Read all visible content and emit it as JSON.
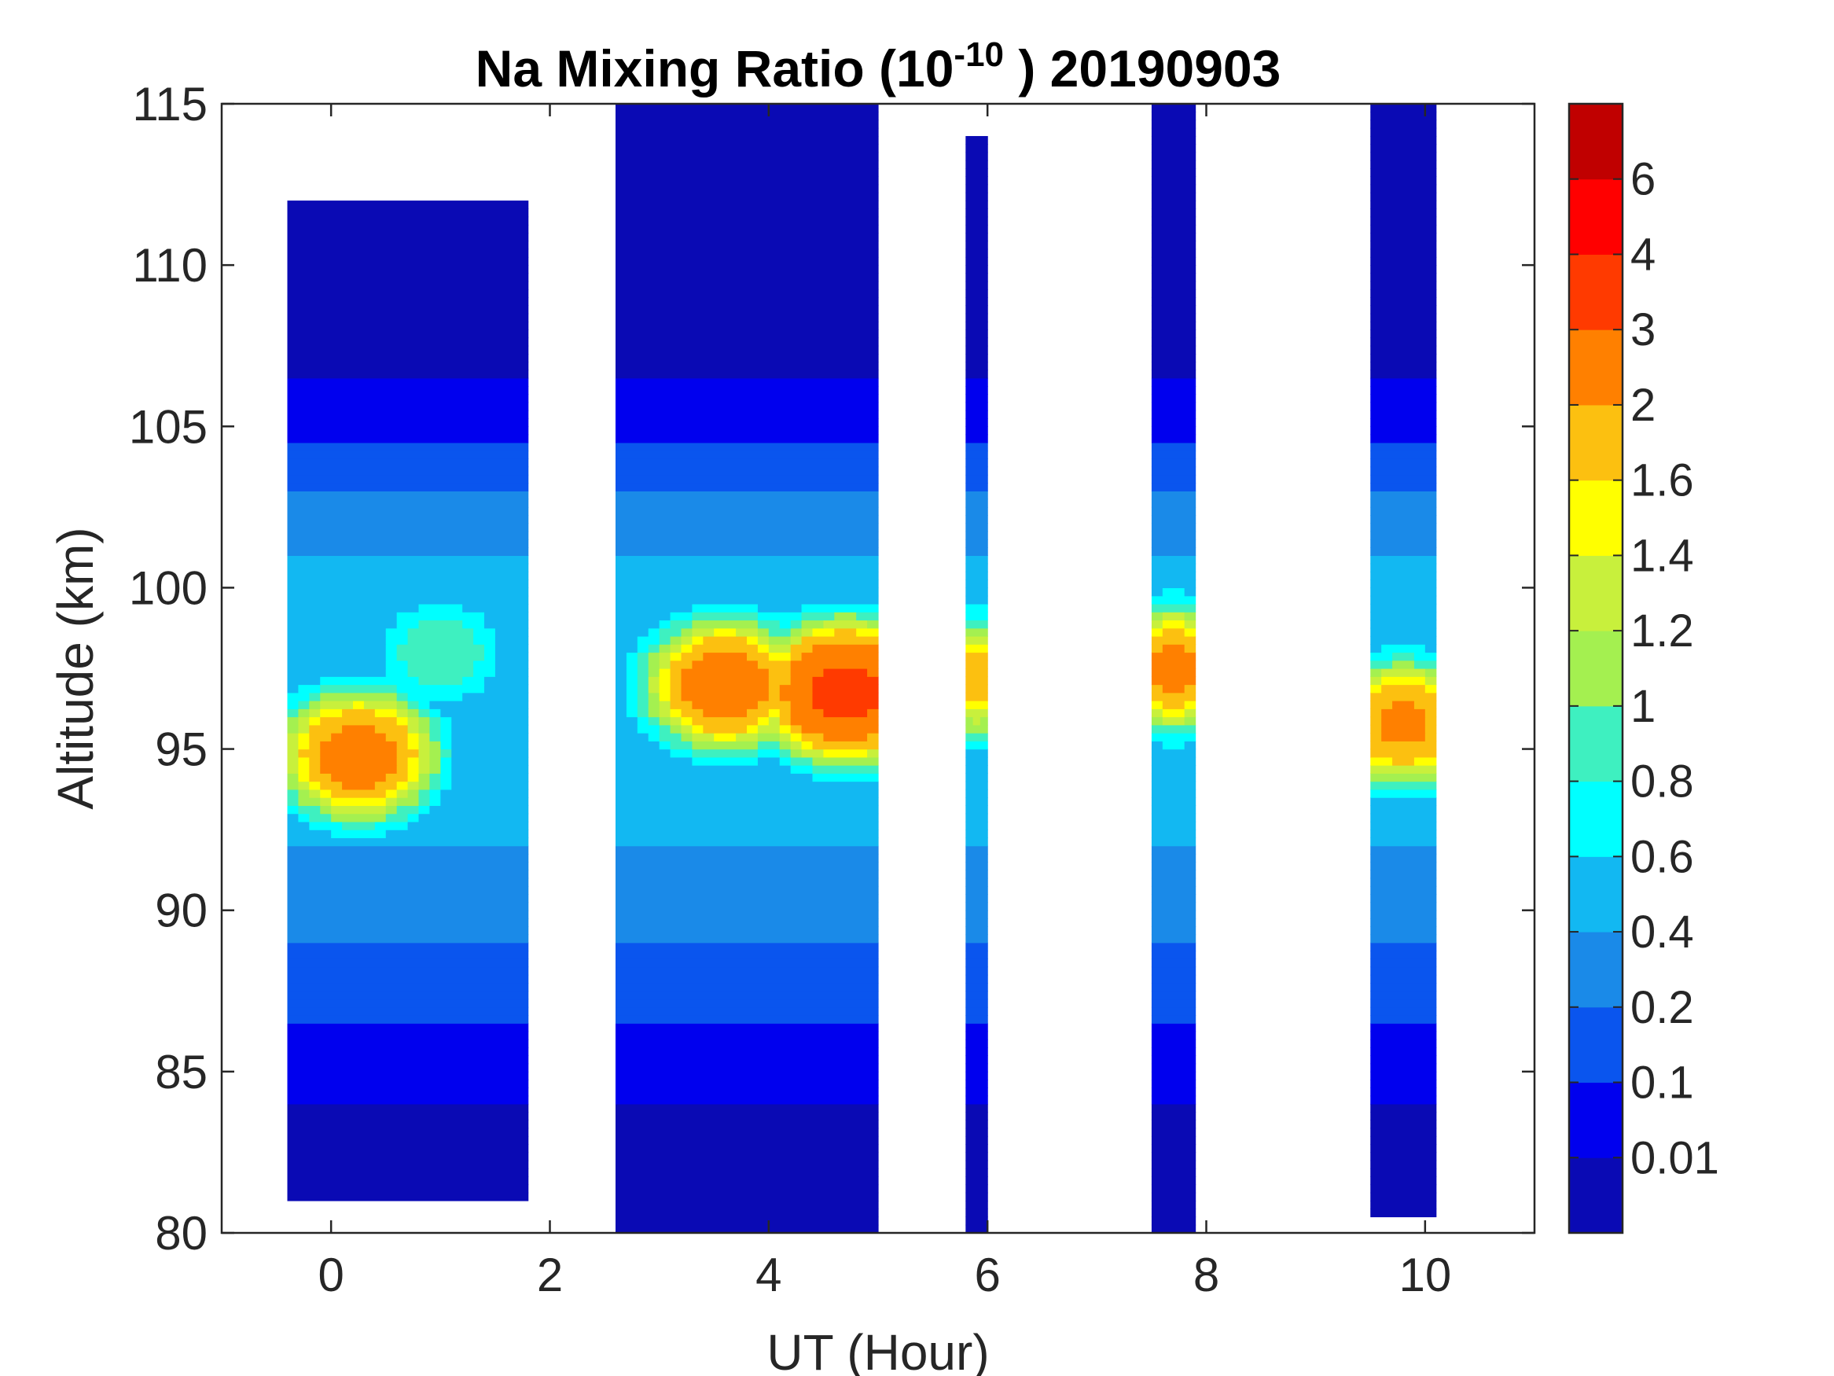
{
  "chart_data": {
    "type": "heatmap",
    "subtype": "filled-contour",
    "title": {
      "text": "Na Mixing Ratio (10",
      "superscript": "-10",
      "suffix": " ) 20190903"
    },
    "xlabel": "UT (Hour)",
    "ylabel": "Altitude (km)",
    "xlim": [
      -1,
      11
    ],
    "ylim": [
      80,
      115
    ],
    "xticks": [
      0,
      2,
      4,
      6,
      8,
      10
    ],
    "xtick_labels": [
      "0",
      "2",
      "4",
      "6",
      "8",
      "10"
    ],
    "yticks": [
      80,
      85,
      90,
      95,
      100,
      105,
      110,
      115
    ],
    "ytick_labels": [
      "80",
      "85",
      "90",
      "95",
      "100",
      "105",
      "110",
      "115"
    ],
    "colorbar": {
      "levels": [
        0,
        0.01,
        0.1,
        0.2,
        0.4,
        0.6,
        0.8,
        1,
        1.2,
        1.4,
        1.6,
        2,
        3,
        4,
        6,
        7
      ],
      "labels": [
        "0.01",
        "0.1",
        "0.2",
        "0.4",
        "0.6",
        "0.8",
        "1",
        "1.2",
        "1.4",
        "1.6",
        "2",
        "3",
        "4",
        "6"
      ],
      "colors": [
        "#0a0ab4",
        "#0000ee",
        "#0a55ee",
        "#1a8ae8",
        "#12b8f2",
        "#00ffff",
        "#3ef0c0",
        "#a4f050",
        "#c8f03c",
        "#ffff00",
        "#fcc010",
        "#ff8000",
        "#ff3a00",
        "#ff0000",
        "#c00000"
      ]
    },
    "observation_segments": [
      {
        "ut_start": -0.4,
        "ut_end": 1.8,
        "alt_min": 81.0,
        "alt_max": 112.0
      },
      {
        "ut_start": 2.6,
        "ut_end": 5.0,
        "alt_min": 80.0,
        "alt_max": 115.0
      },
      {
        "ut_start": 5.8,
        "ut_end": 6.0,
        "alt_min": 80.0,
        "alt_max": 114.0
      },
      {
        "ut_start": 7.5,
        "ut_end": 7.9,
        "alt_min": 80.0,
        "alt_max": 115.0
      },
      {
        "ut_start": 9.5,
        "ut_end": 10.1,
        "alt_min": 80.5,
        "alt_max": 115.0
      }
    ],
    "layer_peaks": [
      {
        "ut": 0.25,
        "altitude_km": 94.8,
        "mixing_ratio": 2.5
      },
      {
        "ut": 1.0,
        "altitude_km": 98.0,
        "mixing_ratio": 1.0
      },
      {
        "ut": 3.6,
        "altitude_km": 97.0,
        "mixing_ratio": 2.6
      },
      {
        "ut": 4.7,
        "altitude_km": 96.8,
        "mixing_ratio": 3.5
      },
      {
        "ut": 5.9,
        "altitude_km": 97.2,
        "mixing_ratio": 1.8
      },
      {
        "ut": 7.7,
        "altitude_km": 97.5,
        "mixing_ratio": 2.2
      },
      {
        "ut": 9.8,
        "altitude_km": 95.8,
        "mixing_ratio": 2.2
      }
    ],
    "grid": false
  }
}
